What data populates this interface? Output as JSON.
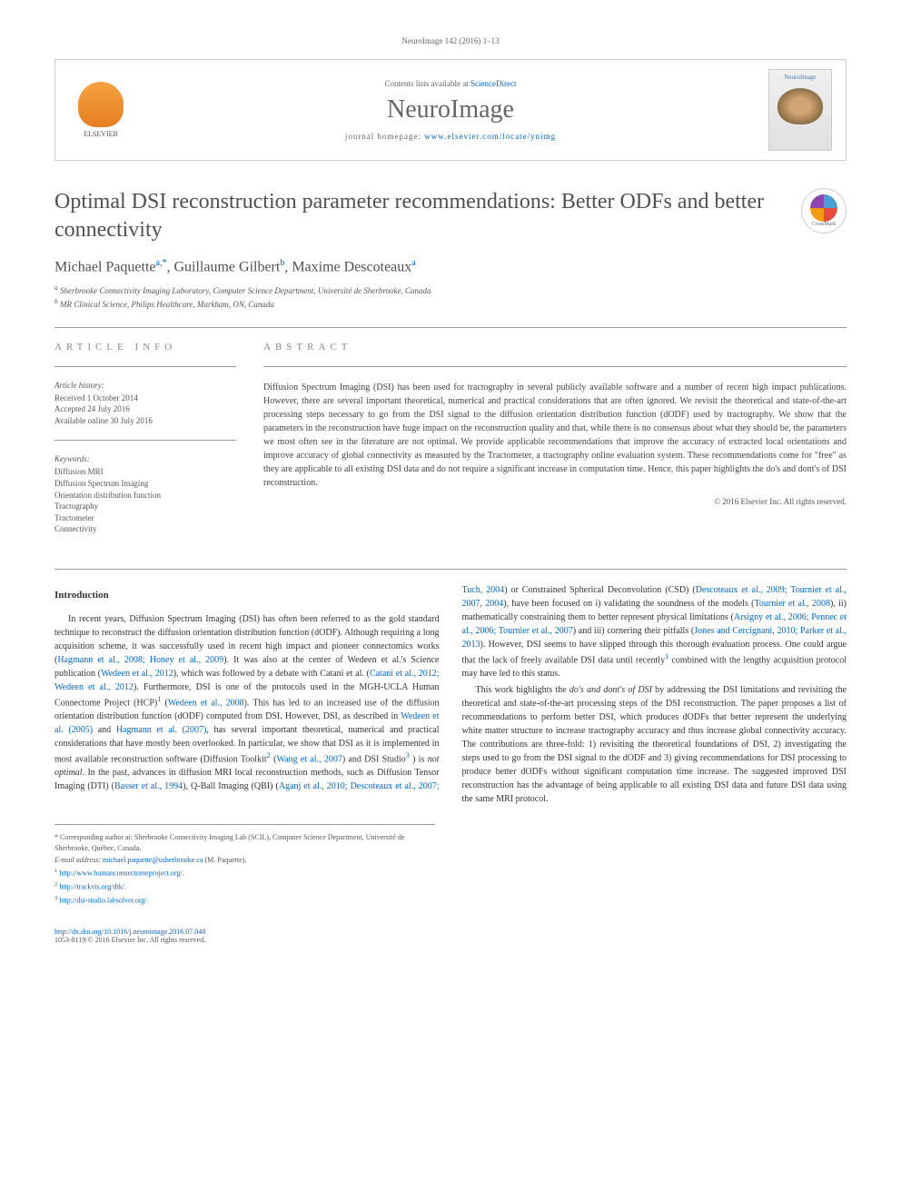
{
  "header": {
    "citation": "NeuroImage 142 (2016) 1–13",
    "contents_prefix": "Contents lists available at ",
    "sciencedirect": "ScienceDirect",
    "journal_name": "NeuroImage",
    "homepage_label": "journal homepage: ",
    "homepage_url": "www.elsevier.com/locate/ynimg",
    "elsevier_label": "ELSEVIER",
    "cover_title": "NeuroImage",
    "crossmark_label": "CrossMark"
  },
  "article": {
    "title": "Optimal DSI reconstruction parameter recommendations: Better ODFs and better connectivity",
    "authors": [
      {
        "name": "Michael Paquette",
        "affil": "a,",
        "mark": "*"
      },
      {
        "name": "Guillaume Gilbert",
        "affil": "b",
        "mark": ""
      },
      {
        "name": "Maxime Descoteaux",
        "affil": "a",
        "mark": ""
      }
    ],
    "affiliations": [
      {
        "sup": "a",
        "text": "Sherbrooke Connectivity Imaging Laboratory, Computer Science Department, Université de Sherbrooke, Canada"
      },
      {
        "sup": "b",
        "text": "MR Clinical Science, Philips Healthcare, Markham, ON, Canada"
      }
    ]
  },
  "info": {
    "header": "ARTICLE INFO",
    "history_title": "Article history:",
    "history": "Received 1 October 2014\nAccepted 24 July 2016\nAvailable online 30 July 2016",
    "keywords_title": "Keywords:",
    "keywords": "Diffusion MRI\nDiffusion Spectrum Imaging\nOrientation distribution function\nTractography\nTractometer\nConnectivity"
  },
  "abstract": {
    "header": "ABSTRACT",
    "text": "Diffusion Spectrum Imaging (DSI) has been used for tractography in several publicly available software and a number of recent high impact publications. However, there are several important theoretical, numerical and practical considerations that are often ignored. We revisit the theoretical and state-of-the-art processing steps necessary to go from the DSI signal to the diffusion orientation distribution function (dODF) used by tractography. We show that the parameters in the reconstruction have huge impact on the reconstruction quality and that, while there is no consensus about what they should be, the parameters we most often see in the literature are not optimal. We provide applicable recommendations that improve the accuracy of extracted local orientations and improve accuracy of global connectivity as measured by the Tractometer, a tractography online evaluation system. These recommendations come for \"free\" as they are applicable to all existing DSI data and do not require a significant increase in computation time. Hence, this paper highlights the do's and dont's of DSI reconstruction.",
    "copyright": "© 2016 Elsevier Inc. All rights reserved."
  },
  "body": {
    "intro_heading": "Introduction",
    "p1a": "In recent years, Diffusion Spectrum Imaging (DSI) has often been referred to as the gold standard technique to reconstruct the diffusion orientation distribution function (dODF). Although requiring a long acquisition scheme, it was successfully used in recent high impact and pioneer connectomics works (",
    "c1": "Hagmann et al., 2008; Honey et al., 2009",
    "p1b": "). It was also at the center of Wedeen et al.'s Science publication (",
    "c2": "Wedeen et al., 2012",
    "p1c": "), which was followed by a debate with Catani et al. (",
    "c3": "Catani et al., 2012; Wedeen et al., 2012",
    "p1d": "). Furthermore, DSI is one of the protocols used in the MGH-UCLA Human Connectome Project (HCP)",
    "sup1": "1",
    "p1e": " (",
    "c4": "Wedeen et al., 2008",
    "p1f": "). This has led to an increased use of the diffusion orientation distribution function (dODF) computed from DSI. However, DSI, as described in ",
    "c5": "Wedeen et al. (2005)",
    "p1g": " and ",
    "c6": "Hagmann et al. (2007)",
    "p1h": ", has several important theoretical, numerical and practical considerations that have mostly been overlooked. In particular, we show that DSI as it is implemented in most available reconstruction software (Diffusion Toolkit",
    "sup2": "2",
    "p1i": " (",
    "c7": "Wang et al., 2007",
    "p1j": ") and DSI Studio",
    "sup3": "3",
    "p1k": " ) is ",
    "italic1": "not optimal",
    "p1l": ". In the past, advances in diffusion MRI local reconstruction methods, such as Diffusion Tensor Imaging (DTI) (",
    "c8": "Basser et al., 1994",
    "p1m": "), Q-Ball Imaging (QBI) (",
    "c9": "Aganj et al., 2010; Descoteaux et al., 2007; Tuch, 2004",
    "p1n": ") or Constrained Spherical Deconvolution (CSD) (",
    "c10": "Descoteaux et al., 2009; Tournier et al., 2007, 2004",
    "p1o": "), have been focused on i) validating the soundness of the models (",
    "c11": "Tournier et al., 2008",
    "p1p": "), ii) mathematically constraining them to better represent physical limitations (",
    "c12": "Arsigny et al., 2006; Pennec et al., 2006; Tournier et al., 2007",
    "p1q": ") and iii) cornering their pitfalls (",
    "c13": "Jones and Cercignani, 2010; Parker et al., 2013",
    "p1r": "). However, DSI seems to have slipped through this thorough evaluation process. One could argue that the lack of freely available DSI data until recently",
    "sup1b": "1",
    "p1s": " combined with the lengthy acquisition protocol may have led to this status.",
    "p2a": "This work highlights the ",
    "italic2": "do's and dont's of DSI",
    "p2b": " by addressing the DSI limitations and revisiting the theoretical and state-of-the-art processing steps of the DSI reconstruction. The paper proposes a list of recommendations to perform better DSI, which produces dODFs that better represent the underlying white matter structure to increase tractography accuracy and thus increase global connectivity accuracy. The contributions are three-fold: 1) revisiting the theoretical foundations of DSI, 2) investigating the steps used to go from the DSI signal to the dODF and 3) giving recommendations for DSI processing to produce better dODFs without significant computation time increase. The suggested improved DSI reconstruction has the advantage of being applicable to all existing DSI data and future DSI data using the same MRI protocol."
  },
  "footnotes": {
    "corr_label": "* Corresponding author at: Sherbrooke Connectivity Imaging Lab (SCIL), Computer Science Department, Université de Sherbrooke, Québec, Canada.",
    "email_label": "E-mail address: ",
    "email": "michael.paquette@usherbrooke.ca",
    "email_suffix": " (M. Paquette).",
    "fn1": "http://www.humanconnectomeproject.org/",
    "fn2": "http://trackvis.org/dtk/",
    "fn3": "http://dsi-studio.labsolver.org/"
  },
  "footer": {
    "doi": "http://dx.doi.org/10.1016/j.neuroimage.2016.07.048",
    "issn": "1053-8119/© 2016 Elsevier Inc. All rights reserved."
  },
  "colors": {
    "link": "#0066cc",
    "text_gray": "#666",
    "body": "#333"
  }
}
